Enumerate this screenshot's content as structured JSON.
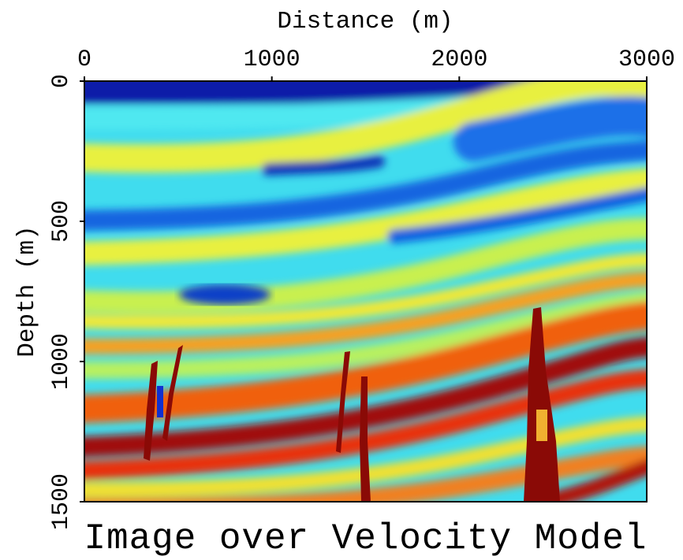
{
  "chart_data": {
    "type": "heatmap",
    "title": "Image over Velocity Model",
    "x_label": "Distance (m)",
    "y_label": "Depth (m)",
    "x_axis_position": "top",
    "xlim": [
      0,
      3000
    ],
    "xticks": [
      0,
      1000,
      2000,
      3000
    ],
    "ylim": [
      1500,
      0
    ],
    "yticks": [
      0,
      500,
      1000,
      1500
    ]
  }
}
